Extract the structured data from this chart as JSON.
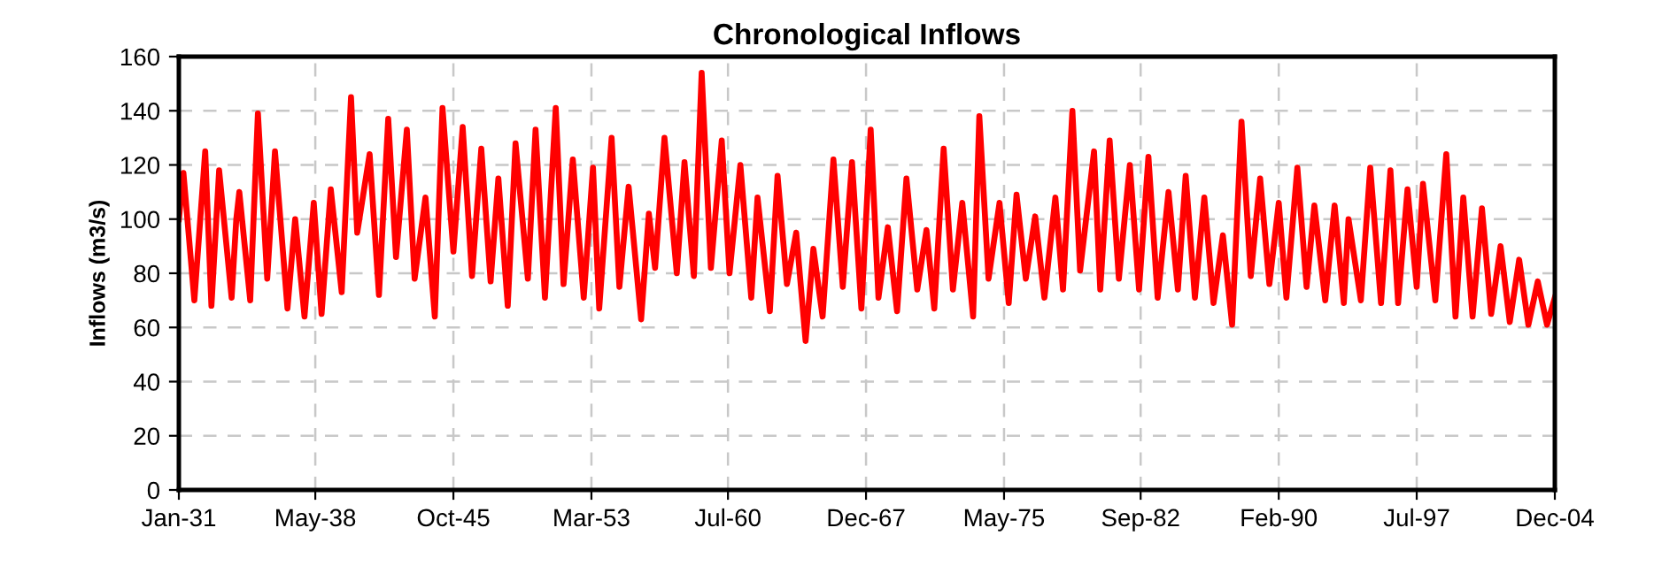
{
  "chart_data": {
    "type": "line",
    "title": "Chronological Inflows",
    "ylabel": "Inflows (m3/s)",
    "xlim": [
      "1931-01",
      "2004-12"
    ],
    "ylim": [
      0,
      160
    ],
    "xticks": [
      {
        "value": "1931-01",
        "label": "Jan-31"
      },
      {
        "value": "1938-05",
        "label": "May-38"
      },
      {
        "value": "1945-10",
        "label": "Oct-45"
      },
      {
        "value": "1953-03",
        "label": "Mar-53"
      },
      {
        "value": "1960-07",
        "label": "Jul-60"
      },
      {
        "value": "1967-12",
        "label": "Dec-67"
      },
      {
        "value": "1975-05",
        "label": "May-75"
      },
      {
        "value": "1982-09",
        "label": "Sep-82"
      },
      {
        "value": "1990-02",
        "label": "Feb-90"
      },
      {
        "value": "1997-07",
        "label": "Jul-97"
      },
      {
        "value": "2004-12",
        "label": "Dec-04"
      }
    ],
    "yticks": [
      0,
      20,
      40,
      60,
      80,
      100,
      120,
      140,
      160
    ],
    "grid": true,
    "legend": false,
    "marker": "none",
    "line_style": "solid",
    "series": [
      {
        "color": "#ff0000",
        "x": [
          "1931-01",
          "1931-04",
          "1931-11",
          "1932-06",
          "1932-10",
          "1933-03",
          "1933-11",
          "1934-02",
          "1934-04",
          "1934-11",
          "1935-04",
          "1935-10",
          "1936-03",
          "1936-11",
          "1937-04",
          "1937-10",
          "1938-04",
          "1938-09",
          "1939-03",
          "1939-10",
          "1940-04",
          "1940-08",
          "1941-04",
          "1941-10",
          "1942-04",
          "1942-09",
          "1943-04",
          "1943-09",
          "1944-04",
          "1944-10",
          "1945-03",
          "1945-10",
          "1946-04",
          "1946-10",
          "1947-04",
          "1947-10",
          "1948-03",
          "1948-09",
          "1949-02",
          "1949-10",
          "1950-03",
          "1950-09",
          "1951-04",
          "1951-09",
          "1952-03",
          "1952-10",
          "1953-04",
          "1953-08",
          "1954-04",
          "1954-09",
          "1955-03",
          "1955-11",
          "1956-04",
          "1956-08",
          "1957-02",
          "1957-10",
          "1958-03",
          "1958-09",
          "1959-02",
          "1959-08",
          "1960-03",
          "1960-08",
          "1961-03",
          "1961-10",
          "1962-02",
          "1962-10",
          "1963-03",
          "1963-09",
          "1964-03",
          "1964-09",
          "1965-02",
          "1965-08",
          "1966-03",
          "1966-09",
          "1967-03",
          "1967-09",
          "1968-03",
          "1968-08",
          "1969-02",
          "1969-08",
          "1970-02",
          "1970-09",
          "1971-03",
          "1971-08",
          "1972-02",
          "1972-08",
          "1973-02",
          "1973-09",
          "1974-01",
          "1974-07",
          "1975-02",
          "1975-08",
          "1976-01",
          "1976-07",
          "1977-01",
          "1977-07",
          "1978-02",
          "1978-07",
          "1979-01",
          "1979-06",
          "1980-03",
          "1980-07",
          "1981-01",
          "1981-07",
          "1982-02",
          "1982-08",
          "1983-02",
          "1983-08",
          "1984-03",
          "1984-09",
          "1985-02",
          "1985-08",
          "1986-02",
          "1986-08",
          "1987-02",
          "1987-08",
          "1988-02",
          "1988-08",
          "1989-02",
          "1989-08",
          "1990-02",
          "1990-07",
          "1991-02",
          "1991-08",
          "1992-01",
          "1992-08",
          "1993-02",
          "1993-08",
          "1993-11",
          "1994-07",
          "1995-01",
          "1995-08",
          "1996-02",
          "1996-07",
          "1997-01",
          "1997-07",
          "1997-11",
          "1998-07",
          "1999-02",
          "1999-08",
          "2000-01",
          "2000-07",
          "2001-01",
          "2001-07",
          "2002-01",
          "2002-07",
          "2003-01",
          "2003-07",
          "2004-01",
          "2004-07",
          "2004-12"
        ],
        "values": [
          100,
          117,
          70,
          125,
          68,
          118,
          71,
          100,
          110,
          70,
          139,
          78,
          125,
          67,
          100,
          64,
          106,
          65,
          111,
          73,
          145,
          95,
          124,
          72,
          137,
          86,
          133,
          78,
          108,
          64,
          141,
          88,
          134,
          79,
          126,
          77,
          115,
          68,
          128,
          78,
          133,
          71,
          141,
          76,
          122,
          71,
          119,
          67,
          130,
          75,
          112,
          63,
          102,
          82,
          130,
          80,
          121,
          79,
          154,
          82,
          129,
          80,
          120,
          71,
          108,
          66,
          116,
          76,
          95,
          55,
          89,
          64,
          122,
          75,
          121,
          67,
          133,
          71,
          97,
          66,
          115,
          74,
          96,
          67,
          126,
          74,
          106,
          64,
          138,
          78,
          106,
          69,
          109,
          78,
          101,
          71,
          108,
          74,
          140,
          81,
          125,
          74,
          129,
          78,
          120,
          74,
          123,
          71,
          110,
          74,
          116,
          71,
          108,
          69,
          94,
          61,
          136,
          79,
          115,
          76,
          106,
          71,
          119,
          75,
          105,
          70,
          105,
          69,
          100,
          70,
          119,
          69,
          118,
          69,
          111,
          75,
          113,
          70,
          124,
          64,
          108,
          64,
          104,
          65,
          90,
          62,
          85,
          61,
          77,
          61,
          71
        ]
      }
    ]
  }
}
